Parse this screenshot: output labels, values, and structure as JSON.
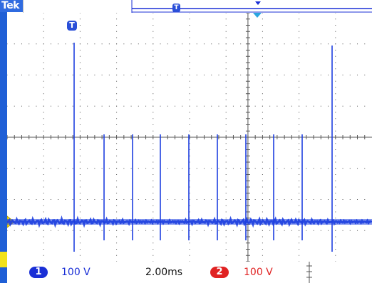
{
  "status_badge": "Tek",
  "trigger_marker_label": "T",
  "channel1": {
    "number": "1",
    "scale": "100 V",
    "color": "#1a2fd6"
  },
  "channel2": {
    "number": "2",
    "scale": "100 V",
    "color": "#e02222"
  },
  "timebase": "2.00ms",
  "colors": {
    "trace": "#1e3fe0",
    "sidebar": "#1f5fd6",
    "grid": "#555555",
    "trigger_arrow": "#2aa5e0",
    "ground_marker": "#f2e21a"
  },
  "icons": [
    "trigger-position-icon",
    "trigger-level-arrow-icon",
    "channel1-ground-marker-icon",
    "trigger-level-marker-icon"
  ]
}
